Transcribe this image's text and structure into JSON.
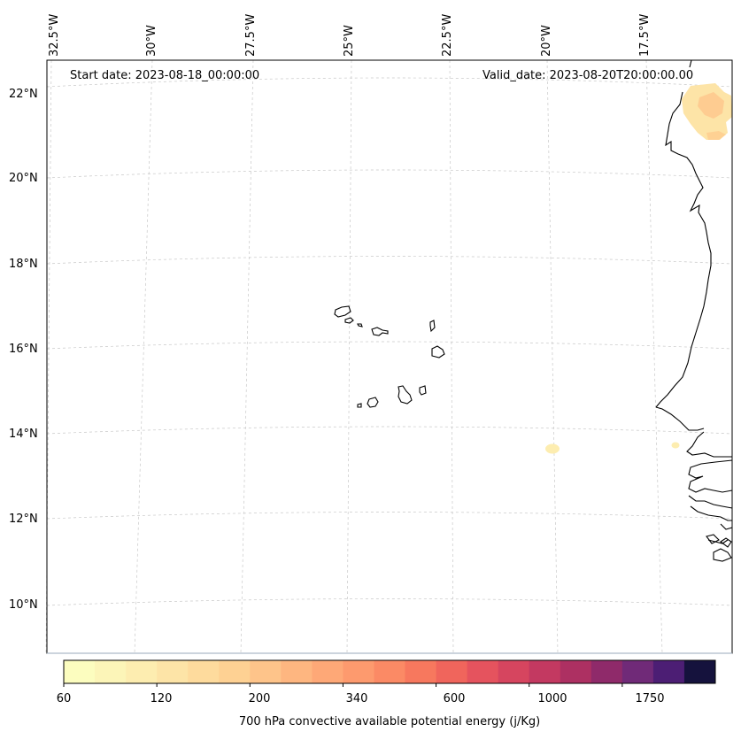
{
  "map": {
    "start_date": "Start date: 2023-08-18_00:00:00",
    "valid_date": "Valid_date: 2023-08-20T20:00:00.00",
    "longitude_labels": [
      "32.5°W",
      "30°W",
      "27.5°W",
      "25°W",
      "22.5°W",
      "20°W",
      "17.5°W"
    ],
    "latitude_labels": [
      "22°N",
      "20°N",
      "18°N",
      "16°N",
      "14°N",
      "12°N",
      "10°N"
    ],
    "region": "Cabo Verde and West African coast",
    "variable": "700 hPa convective available potential energy",
    "field_areas": [
      {
        "name": "northeast-cape-blanc",
        "approx_lat": 21.5,
        "approx_lon": -16.5,
        "level": "120-340"
      },
      {
        "name": "west-of-senegal-small",
        "approx_lat": 13.7,
        "approx_lon": -20.2,
        "level": "60-120"
      },
      {
        "name": "senegal-coast-small",
        "approx_lat": 13.8,
        "approx_lon": -17.3,
        "level": "60-120"
      }
    ]
  },
  "colorbar": {
    "title": "700 hPa convective available potential energy (j/Kg)",
    "tick_labels": [
      "60",
      "120",
      "200",
      "340",
      "600",
      "1000",
      "1750"
    ],
    "colors": [
      "#fcfdbf",
      "#fcf5b8",
      "#fdedb0",
      "#fde4a7",
      "#fedb9d",
      "#fed193",
      "#fec48a",
      "#feb680",
      "#fea877",
      "#fd9a6e",
      "#fb8a65",
      "#f7785e",
      "#f0655c",
      "#e5535e",
      "#d6455f",
      "#c33961",
      "#ad3062",
      "#8f2a6a",
      "#702a78",
      "#4c1e74",
      "#15123d"
    ]
  }
}
